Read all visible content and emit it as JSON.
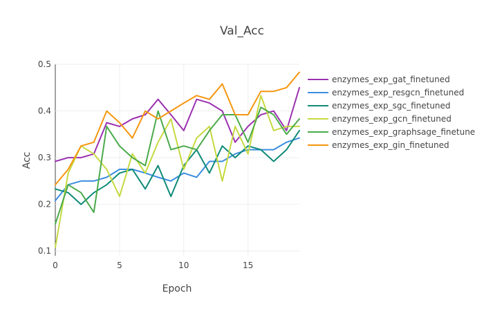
{
  "chart_data": {
    "type": "line",
    "title": "Val_Acc",
    "xlabel": "Epoch",
    "ylabel": "Acc",
    "xlim": [
      0,
      19
    ],
    "ylim": [
      0.09,
      0.5
    ],
    "xticks": [
      0,
      5,
      10,
      15
    ],
    "yticks": [
      0.1,
      0.2,
      0.3,
      0.4,
      0.5
    ],
    "grid": true,
    "legend": "right",
    "x": [
      0,
      1,
      2,
      3,
      4,
      5,
      6,
      7,
      8,
      9,
      10,
      11,
      12,
      13,
      14,
      15,
      16,
      17,
      18,
      19
    ],
    "series": [
      {
        "name": "enzymes_exp_gat_finetuned",
        "color": "#9b30b0",
        "values": [
          0.292,
          0.3,
          0.3,
          0.308,
          0.375,
          0.367,
          0.383,
          0.392,
          0.425,
          0.392,
          0.358,
          0.425,
          0.417,
          0.4,
          0.333,
          0.367,
          0.392,
          0.4,
          0.358,
          0.45
        ]
      },
      {
        "name": "enzymes_exp_resgcn_finetuned",
        "color": "#3a8de0",
        "values": [
          0.208,
          0.242,
          0.25,
          0.25,
          0.258,
          0.275,
          0.275,
          0.267,
          0.258,
          0.25,
          0.267,
          0.258,
          0.292,
          0.292,
          0.308,
          0.317,
          0.317,
          0.317,
          0.333,
          0.342
        ]
      },
      {
        "name": "enzymes_exp_sgc_finetuned",
        "color": "#0f8a78",
        "values": [
          0.233,
          0.225,
          0.2,
          0.225,
          0.242,
          0.267,
          0.275,
          0.233,
          0.283,
          0.217,
          0.283,
          0.317,
          0.267,
          0.325,
          0.3,
          0.325,
          0.317,
          0.292,
          0.317,
          0.358
        ]
      },
      {
        "name": "enzymes_exp_gcn_finetuned",
        "color": "#c5d93f",
        "values": [
          0.108,
          0.267,
          0.325,
          0.308,
          0.275,
          0.217,
          0.308,
          0.267,
          0.333,
          0.383,
          0.275,
          0.342,
          0.367,
          0.25,
          0.367,
          0.308,
          0.433,
          0.358,
          0.367,
          0.367
        ]
      },
      {
        "name": "enzymes_exp_graphsage_finetune",
        "color": "#4aaa4a",
        "values": [
          0.158,
          0.242,
          0.225,
          0.183,
          0.367,
          0.325,
          0.3,
          0.283,
          0.4,
          0.317,
          0.325,
          0.317,
          0.358,
          0.392,
          0.392,
          0.333,
          0.408,
          0.392,
          0.35,
          0.383
        ]
      },
      {
        "name": "enzymes_exp_gin_finetuned",
        "color": "#f5960f",
        "values": [
          0.242,
          0.275,
          0.325,
          0.333,
          0.4,
          0.375,
          0.342,
          0.4,
          0.383,
          0.4,
          0.417,
          0.433,
          0.425,
          0.458,
          0.392,
          0.392,
          0.442,
          0.442,
          0.45,
          0.483
        ]
      }
    ]
  }
}
